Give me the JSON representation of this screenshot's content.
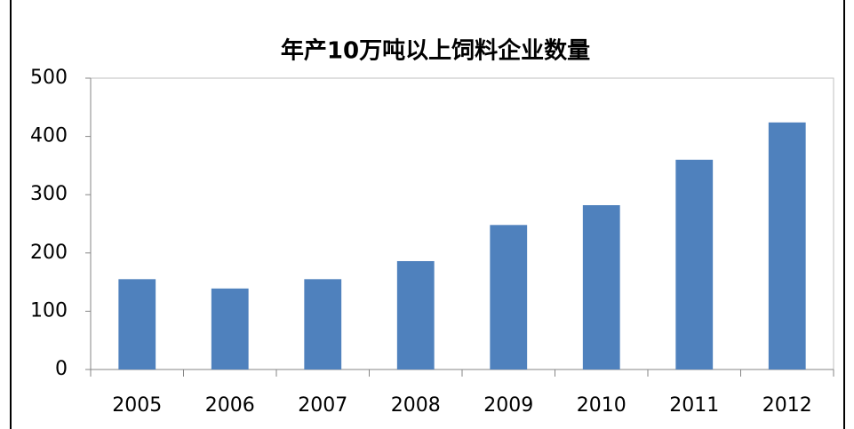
{
  "chart_data": {
    "type": "bar",
    "title": "年产10万吨以上饲料企业数量",
    "categories": [
      "2005",
      "2006",
      "2007",
      "2008",
      "2009",
      "2010",
      "2011",
      "2012"
    ],
    "values": [
      155,
      139,
      155,
      186,
      248,
      282,
      360,
      424
    ],
    "color": "#4f81bd",
    "ylim": [
      0,
      500
    ],
    "yticks": [
      0,
      100,
      200,
      300,
      400,
      500
    ],
    "grid": false
  }
}
